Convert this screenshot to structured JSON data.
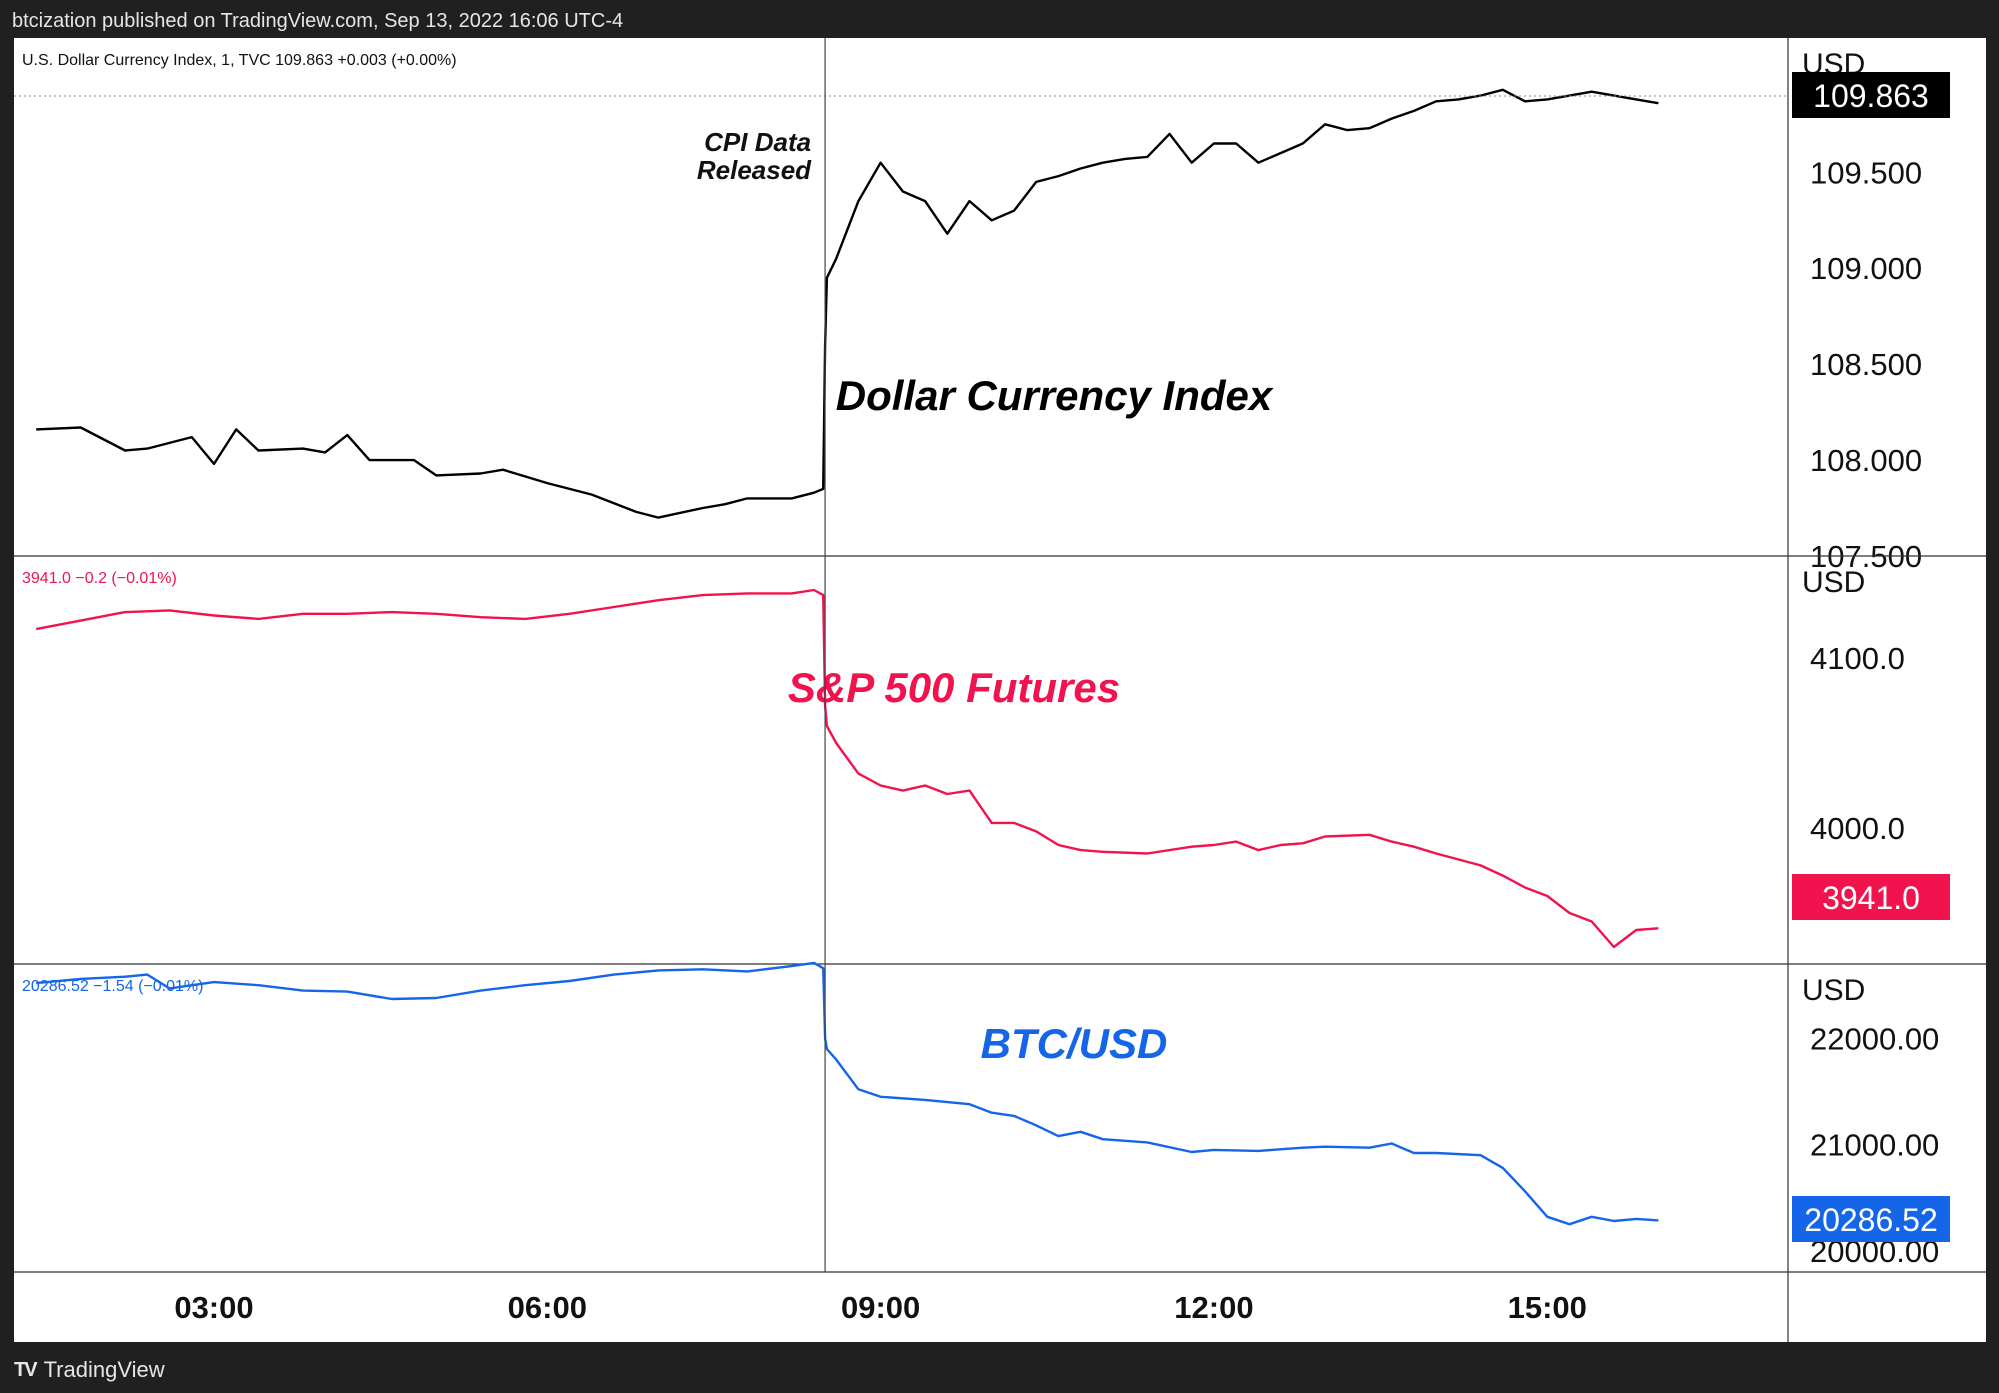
{
  "header": {
    "published": "btcization published on TradingView.com, Sep 13, 2022 16:06 UTC-4"
  },
  "footer": {
    "brand": "TradingView",
    "logo": "tradingview-logo"
  },
  "event_annotation": {
    "line1": "CPI Data",
    "line2": "Released"
  },
  "colors": {
    "dxy": "#000000",
    "spx": "#f0134d",
    "btc": "#1565e8",
    "grid": "#333333"
  },
  "x_axis": {
    "ticks": [
      "03:00",
      "06:00",
      "09:00",
      "12:00",
      "15:00"
    ]
  },
  "chart_data": [
    {
      "type": "line",
      "legend": "U.S. Dollar Currency Index, 1, TVC  109.863  +0.003 (+0.00%)",
      "title": "Dollar Currency Index",
      "unit": "USD",
      "last_value": "109.863",
      "ylim": [
        107.5,
        110.2
      ],
      "y_ticks": [
        "109.500",
        "109.000",
        "108.500",
        "108.000",
        "107.500"
      ],
      "x": [
        "01:24",
        "01:48",
        "02:12",
        "02:24",
        "02:48",
        "03:00",
        "03:12",
        "03:24",
        "03:48",
        "04:00",
        "04:12",
        "04:24",
        "04:48",
        "05:00",
        "05:24",
        "05:36",
        "06:00",
        "06:24",
        "06:48",
        "07:00",
        "07:24",
        "07:36",
        "07:48",
        "08:12",
        "08:24",
        "08:29",
        "08:30",
        "08:31",
        "08:36",
        "08:48",
        "09:00",
        "09:12",
        "09:24",
        "09:36",
        "09:48",
        "10:00",
        "10:12",
        "10:24",
        "10:36",
        "10:48",
        "11:00",
        "11:12",
        "11:24",
        "11:36",
        "11:48",
        "12:00",
        "12:12",
        "12:24",
        "12:36",
        "12:48",
        "13:00",
        "13:12",
        "13:24",
        "13:36",
        "13:48",
        "14:00",
        "14:12",
        "14:24",
        "14:36",
        "14:48",
        "15:00",
        "15:12",
        "15:24",
        "15:36",
        "15:48",
        "16:00"
      ],
      "y": [
        108.16,
        108.17,
        108.05,
        108.06,
        108.12,
        107.98,
        108.16,
        108.05,
        108.06,
        108.04,
        108.13,
        108.0,
        108.0,
        107.92,
        107.93,
        107.95,
        107.88,
        107.82,
        107.73,
        107.7,
        107.75,
        107.77,
        107.8,
        107.8,
        107.83,
        107.85,
        108.6,
        108.95,
        109.05,
        109.35,
        109.55,
        109.4,
        109.35,
        109.18,
        109.35,
        109.25,
        109.3,
        109.45,
        109.48,
        109.52,
        109.55,
        109.57,
        109.58,
        109.7,
        109.55,
        109.65,
        109.65,
        109.55,
        109.6,
        109.65,
        109.75,
        109.72,
        109.73,
        109.78,
        109.82,
        109.87,
        109.88,
        109.9,
        109.93,
        109.87,
        109.88,
        109.9,
        109.92,
        109.9,
        109.88,
        109.86
      ]
    },
    {
      "type": "line",
      "legend": "3941.0  −0.2 (−0.01%)",
      "title": "S&P 500 Futures",
      "unit": "USD",
      "last_value": "3941.0",
      "ylim": [
        3920,
        4160
      ],
      "y_ticks": [
        "4100.0",
        "4000.0"
      ],
      "x": [
        "01:24",
        "01:48",
        "02:12",
        "02:36",
        "03:00",
        "03:24",
        "03:48",
        "04:12",
        "04:36",
        "05:00",
        "05:24",
        "05:48",
        "06:12",
        "06:36",
        "07:00",
        "07:24",
        "07:48",
        "08:12",
        "08:24",
        "08:29",
        "08:30",
        "08:31",
        "08:36",
        "08:48",
        "09:00",
        "09:12",
        "09:24",
        "09:36",
        "09:48",
        "10:00",
        "10:12",
        "10:24",
        "10:36",
        "10:48",
        "11:00",
        "11:24",
        "11:48",
        "12:00",
        "12:12",
        "12:24",
        "12:36",
        "12:48",
        "13:00",
        "13:24",
        "13:36",
        "13:48",
        "14:00",
        "14:24",
        "14:36",
        "14:48",
        "15:00",
        "15:12",
        "15:24",
        "15:36",
        "15:42",
        "15:48",
        "16:00"
      ],
      "y": [
        4117,
        4122,
        4127,
        4128,
        4125,
        4123,
        4126,
        4126,
        4127,
        4126,
        4124,
        4123,
        4126,
        4130,
        4134,
        4137,
        4138,
        4138,
        4140,
        4137,
        4072,
        4060,
        4050,
        4032,
        4025,
        4022,
        4025,
        4020,
        4022,
        4003,
        4003,
        3998,
        3990,
        3987,
        3986,
        3985,
        3989,
        3990,
        3992,
        3987,
        3990,
        3991,
        3995,
        3996,
        3992,
        3989,
        3985,
        3978,
        3972,
        3965,
        3960,
        3950,
        3945,
        3930,
        3935,
        3940,
        3941
      ]
    },
    {
      "type": "line",
      "legend": "20286.52  −1.54 (−0.01%)",
      "title": "BTC/USD",
      "unit": "USD",
      "last_value": "20286.52",
      "ylim": [
        19800,
        22700
      ],
      "y_ticks": [
        "22000.00",
        "21000.00",
        "20000.00"
      ],
      "x": [
        "01:24",
        "01:48",
        "02:12",
        "02:24",
        "02:36",
        "03:00",
        "03:24",
        "03:48",
        "04:12",
        "04:36",
        "05:00",
        "05:24",
        "05:48",
        "06:12",
        "06:36",
        "07:00",
        "07:24",
        "07:48",
        "08:12",
        "08:24",
        "08:29",
        "08:30",
        "08:31",
        "08:36",
        "08:48",
        "09:00",
        "09:24",
        "09:48",
        "10:00",
        "10:12",
        "10:24",
        "10:36",
        "10:48",
        "11:00",
        "11:24",
        "11:48",
        "12:00",
        "12:24",
        "12:48",
        "13:00",
        "13:24",
        "13:36",
        "13:48",
        "14:00",
        "14:24",
        "14:36",
        "14:48",
        "15:00",
        "15:12",
        "15:24",
        "15:36",
        "15:48",
        "16:00"
      ],
      "y": [
        22520,
        22560,
        22580,
        22600,
        22470,
        22530,
        22500,
        22450,
        22440,
        22370,
        22380,
        22450,
        22500,
        22540,
        22600,
        22640,
        22650,
        22630,
        22680,
        22710,
        22660,
        22000,
        21900,
        21800,
        21520,
        21450,
        21420,
        21380,
        21300,
        21270,
        21180,
        21080,
        21120,
        21050,
        21020,
        20930,
        20950,
        20940,
        20970,
        20980,
        20970,
        21010,
        20920,
        20920,
        20900,
        20780,
        20560,
        20320,
        20250,
        20320,
        20280,
        20300,
        20286
      ]
    }
  ]
}
